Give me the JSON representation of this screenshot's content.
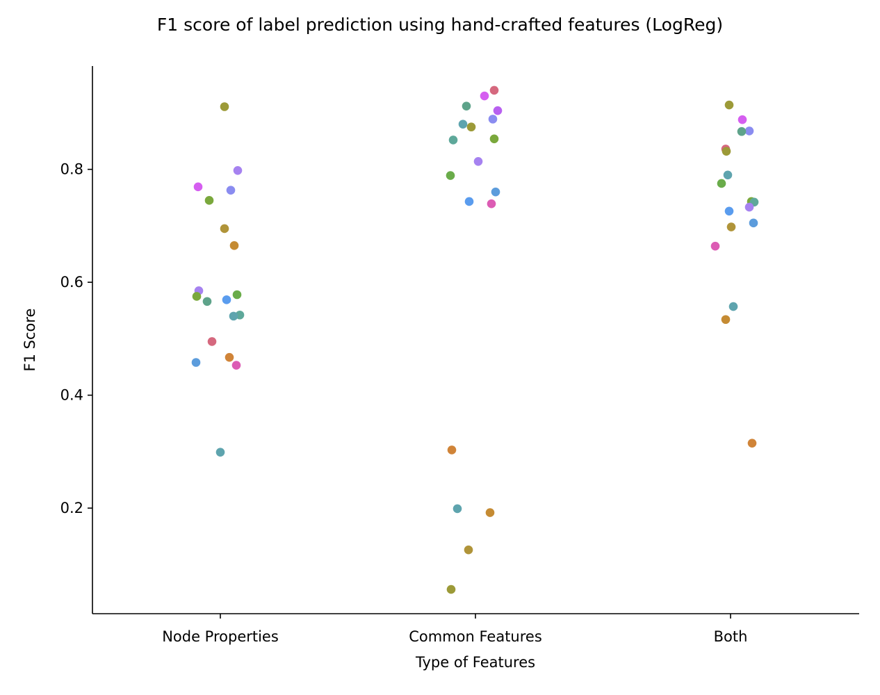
{
  "chart_data": {
    "type": "scatter",
    "title": "F1 score of label prediction using hand-crafted features (LogReg)",
    "xlabel": "Type of Features",
    "ylabel": "F1 Score",
    "categories": [
      "Node Properties",
      "Common Features",
      "Both"
    ],
    "y_ticks": [
      0.2,
      0.4,
      0.6,
      0.8
    ],
    "y_tick_labels": [
      "0.2",
      "0.4",
      "0.6",
      "0.8"
    ],
    "ylim": [
      0.013,
      0.983
    ],
    "grid": false,
    "legend": "none",
    "points": [
      {
        "category": "Node Properties",
        "y": 0.911,
        "color": "#9c9a38"
      },
      {
        "category": "Node Properties",
        "y": 0.798,
        "color": "#a682f0"
      },
      {
        "category": "Node Properties",
        "y": 0.769,
        "color": "#d55ef0"
      },
      {
        "category": "Node Properties",
        "y": 0.763,
        "color": "#8a8cf0"
      },
      {
        "category": "Node Properties",
        "y": 0.745,
        "color": "#7aa83c"
      },
      {
        "category": "Node Properties",
        "y": 0.695,
        "color": "#b09439"
      },
      {
        "category": "Node Properties",
        "y": 0.665,
        "color": "#c58b33"
      },
      {
        "category": "Node Properties",
        "y": 0.585,
        "color": "#a682f0"
      },
      {
        "category": "Node Properties",
        "y": 0.578,
        "color": "#6aac4a"
      },
      {
        "category": "Node Properties",
        "y": 0.575,
        "color": "#7aa83c"
      },
      {
        "category": "Node Properties",
        "y": 0.569,
        "color": "#5a9cee"
      },
      {
        "category": "Node Properties",
        "y": 0.566,
        "color": "#5ea38a"
      },
      {
        "category": "Node Properties",
        "y": 0.542,
        "color": "#5ea89a"
      },
      {
        "category": "Node Properties",
        "y": 0.54,
        "color": "#5ea4ae"
      },
      {
        "category": "Node Properties",
        "y": 0.495,
        "color": "#d5687e"
      },
      {
        "category": "Node Properties",
        "y": 0.467,
        "color": "#d08438"
      },
      {
        "category": "Node Properties",
        "y": 0.458,
        "color": "#5c9cdc"
      },
      {
        "category": "Node Properties",
        "y": 0.453,
        "color": "#dc5cb4"
      },
      {
        "category": "Node Properties",
        "y": 0.299,
        "color": "#5ea4ae"
      },
      {
        "category": "Common Features",
        "y": 0.94,
        "color": "#d5687e"
      },
      {
        "category": "Common Features",
        "y": 0.93,
        "color": "#d55ef0"
      },
      {
        "category": "Common Features",
        "y": 0.912,
        "color": "#5ea38a"
      },
      {
        "category": "Common Features",
        "y": 0.904,
        "color": "#b860f0"
      },
      {
        "category": "Common Features",
        "y": 0.889,
        "color": "#8a8cf0"
      },
      {
        "category": "Common Features",
        "y": 0.88,
        "color": "#5ea4ae"
      },
      {
        "category": "Common Features",
        "y": 0.875,
        "color": "#9c9a38"
      },
      {
        "category": "Common Features",
        "y": 0.854,
        "color": "#7aa83c"
      },
      {
        "category": "Common Features",
        "y": 0.852,
        "color": "#5ea89a"
      },
      {
        "category": "Common Features",
        "y": 0.814,
        "color": "#a682f0"
      },
      {
        "category": "Common Features",
        "y": 0.789,
        "color": "#6aac4a"
      },
      {
        "category": "Common Features",
        "y": 0.76,
        "color": "#5c9cdc"
      },
      {
        "category": "Common Features",
        "y": 0.743,
        "color": "#5a9cee"
      },
      {
        "category": "Common Features",
        "y": 0.739,
        "color": "#dc5cb4"
      },
      {
        "category": "Common Features",
        "y": 0.303,
        "color": "#d08438"
      },
      {
        "category": "Common Features",
        "y": 0.199,
        "color": "#5ea4ae"
      },
      {
        "category": "Common Features",
        "y": 0.192,
        "color": "#c58b33"
      },
      {
        "category": "Common Features",
        "y": 0.126,
        "color": "#b09439"
      },
      {
        "category": "Common Features",
        "y": 0.056,
        "color": "#9c9a38"
      },
      {
        "category": "Both",
        "y": 0.914,
        "color": "#9c9a38"
      },
      {
        "category": "Both",
        "y": 0.888,
        "color": "#d55ef0"
      },
      {
        "category": "Both",
        "y": 0.868,
        "color": "#8a8cf0"
      },
      {
        "category": "Both",
        "y": 0.867,
        "color": "#5ea38a"
      },
      {
        "category": "Both",
        "y": 0.836,
        "color": "#d5687e"
      },
      {
        "category": "Both",
        "y": 0.832,
        "color": "#9c9a38"
      },
      {
        "category": "Both",
        "y": 0.79,
        "color": "#5ea4ae"
      },
      {
        "category": "Both",
        "y": 0.775,
        "color": "#6aac4a"
      },
      {
        "category": "Both",
        "y": 0.743,
        "color": "#7aa83c"
      },
      {
        "category": "Both",
        "y": 0.742,
        "color": "#5ea89a"
      },
      {
        "category": "Both",
        "y": 0.733,
        "color": "#a682f0"
      },
      {
        "category": "Both",
        "y": 0.726,
        "color": "#5a9cee"
      },
      {
        "category": "Both",
        "y": 0.705,
        "color": "#5c9cdc"
      },
      {
        "category": "Both",
        "y": 0.698,
        "color": "#b09439"
      },
      {
        "category": "Both",
        "y": 0.664,
        "color": "#dc5cb4"
      },
      {
        "category": "Both",
        "y": 0.557,
        "color": "#5ea4ae"
      },
      {
        "category": "Both",
        "y": 0.534,
        "color": "#c58b33"
      },
      {
        "category": "Both",
        "y": 0.315,
        "color": "#d08438"
      }
    ]
  }
}
